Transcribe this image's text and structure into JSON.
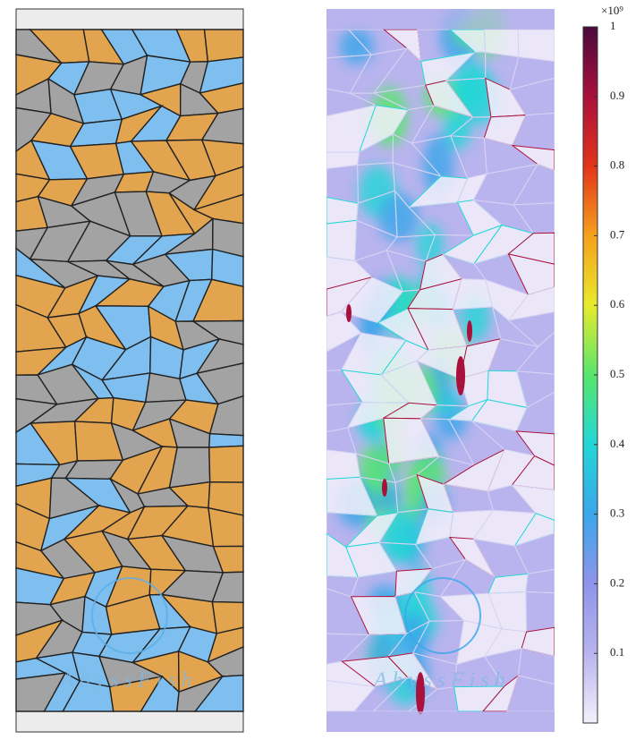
{
  "chart_data": {
    "type": "heatmap",
    "colorbar": {
      "clim": [
        0,
        1
      ],
      "ticks": [
        0.1,
        0.2,
        0.3,
        0.4,
        0.5,
        0.6,
        0.7,
        0.8,
        0.9,
        1
      ],
      "multiplier_label": "×10⁹",
      "colormap": [
        "#f3f0fa",
        "#b9b4ee",
        "#8f94ea",
        "#3aa6ea",
        "#22d6d6",
        "#57e66d",
        "#e8ea2c",
        "#f5a11c",
        "#e3341a",
        "#a9103c",
        "#4a0a3c"
      ]
    },
    "grain_colors": [
      "#a3a3a3",
      "#7ebff0",
      "#e3a44f"
    ],
    "watermarks": [
      "AbyssFish",
      "AbyssFish"
    ]
  }
}
